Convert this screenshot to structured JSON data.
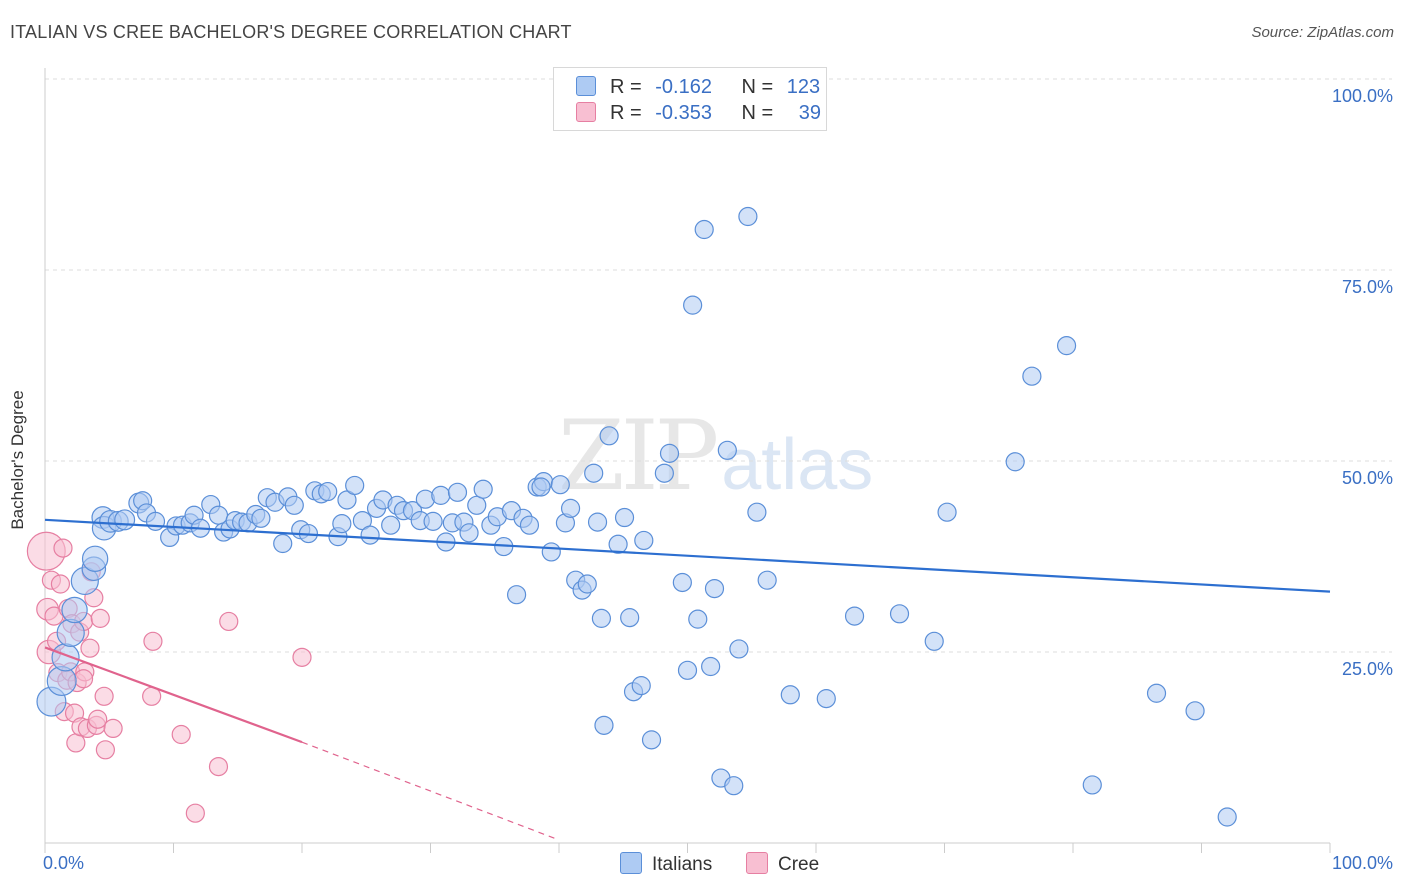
{
  "title": "ITALIAN VS CREE BACHELOR'S DEGREE CORRELATION CHART",
  "source": "Source: ZipAtlas.com",
  "watermark": {
    "zip": "ZIP",
    "atlas": "atlas"
  },
  "colors": {
    "italians_fill": "#aecbf3",
    "italians_stroke": "#5b8fd8",
    "italians_line": "#2d6fd0",
    "cree_fill": "#f8bfd2",
    "cree_stroke": "#e67fa2",
    "cree_line": "#e0638d",
    "tick_text": "#3a6fc4",
    "grid": "#dddddd"
  },
  "legend": {
    "rows": [
      {
        "r_label": "R =",
        "r_value": "-0.162",
        "n_label": "N =",
        "n_value": "123"
      },
      {
        "r_label": "R =",
        "r_value": "-0.353",
        "n_label": "N =",
        "n_value": "39"
      }
    ]
  },
  "bottom_legend": [
    "Italians",
    "Cree"
  ],
  "chart_data": {
    "type": "scatter",
    "xlabel": "",
    "ylabel": "Bachelor's Degree",
    "xlim": [
      0,
      100
    ],
    "ylim": [
      0,
      100
    ],
    "x_tick_labels": [
      "0.0%",
      "100.0%"
    ],
    "y_tick_labels": [
      "100.0%",
      "75.0%",
      "50.0%",
      "25.0%"
    ],
    "y_ticks": [
      100,
      75,
      50,
      25
    ],
    "grid": true,
    "legend_position": "top-center",
    "series": [
      {
        "name": "Italians",
        "trend": {
          "x": [
            0,
            100
          ],
          "y": [
            42.3,
            32.9
          ]
        },
        "points": [
          [
            0.5,
            18.5,
            1.6
          ],
          [
            1.3,
            21.2,
            1.6
          ],
          [
            1.6,
            24.3,
            1.5
          ],
          [
            2.0,
            27.5,
            1.5
          ],
          [
            2.3,
            30.5,
            1.4
          ],
          [
            3.1,
            34.3,
            1.5
          ],
          [
            3.8,
            35.9,
            1.3
          ],
          [
            3.9,
            37.2,
            1.4
          ],
          [
            4.5,
            42.6,
            1.2
          ],
          [
            4.6,
            41.2,
            1.3
          ],
          [
            5.1,
            42.1,
            1.2
          ],
          [
            5.7,
            42.1,
            1.1
          ],
          [
            6.2,
            42.3,
            1.1
          ],
          [
            7.3,
            44.5,
            1.1
          ],
          [
            7.6,
            44.8,
            1.0
          ],
          [
            7.9,
            43.2,
            1.0
          ],
          [
            8.6,
            42.1,
            1.0
          ],
          [
            9.7,
            40.0,
            1.0
          ],
          [
            10.2,
            41.5,
            1.0
          ],
          [
            10.7,
            41.6,
            1.0
          ],
          [
            11.3,
            41.9,
            1.0
          ],
          [
            11.6,
            42.9,
            1.0
          ],
          [
            12.1,
            41.2,
            1.0
          ],
          [
            12.9,
            44.3,
            1.0
          ],
          [
            13.5,
            42.9,
            1.0
          ],
          [
            13.9,
            40.7,
            1.0
          ],
          [
            14.4,
            41.1,
            1.0
          ],
          [
            14.8,
            42.2,
            1.0
          ],
          [
            15.3,
            42.0,
            1.0
          ],
          [
            15.8,
            41.9,
            1.0
          ],
          [
            16.4,
            43.0,
            1.0
          ],
          [
            16.8,
            42.5,
            1.0
          ],
          [
            17.3,
            45.2,
            1.0
          ],
          [
            17.9,
            44.6,
            1.0
          ],
          [
            18.5,
            39.2,
            1.0
          ],
          [
            18.9,
            45.3,
            1.0
          ],
          [
            19.4,
            44.2,
            1.0
          ],
          [
            19.9,
            41.0,
            1.0
          ],
          [
            20.5,
            40.5,
            1.0
          ],
          [
            21.0,
            46.1,
            1.0
          ],
          [
            21.5,
            45.7,
            1.0
          ],
          [
            22.0,
            46.0,
            1.0
          ],
          [
            22.8,
            40.1,
            1.0
          ],
          [
            23.1,
            41.8,
            1.0
          ],
          [
            23.5,
            44.9,
            1.0
          ],
          [
            24.1,
            46.8,
            1.0
          ],
          [
            24.7,
            42.2,
            1.0
          ],
          [
            25.3,
            40.3,
            1.0
          ],
          [
            25.8,
            43.8,
            1.0
          ],
          [
            26.3,
            44.9,
            1.0
          ],
          [
            26.9,
            41.6,
            1.0
          ],
          [
            27.4,
            44.2,
            1.0
          ],
          [
            27.9,
            43.5,
            1.0
          ],
          [
            28.6,
            43.5,
            1.0
          ],
          [
            29.2,
            42.2,
            1.0
          ],
          [
            29.6,
            45.0,
            1.0
          ],
          [
            30.2,
            42.1,
            1.0
          ],
          [
            30.8,
            45.5,
            1.0
          ],
          [
            31.2,
            39.4,
            1.0
          ],
          [
            31.7,
            41.9,
            1.0
          ],
          [
            32.1,
            45.9,
            1.0
          ],
          [
            32.6,
            42.0,
            1.0
          ],
          [
            33.0,
            40.6,
            1.0
          ],
          [
            33.6,
            44.2,
            1.0
          ],
          [
            34.1,
            46.3,
            1.0
          ],
          [
            34.7,
            41.6,
            1.0
          ],
          [
            35.2,
            42.7,
            1.0
          ],
          [
            35.7,
            38.8,
            1.0
          ],
          [
            36.3,
            43.5,
            1.0
          ],
          [
            36.7,
            32.5,
            1.0
          ],
          [
            37.2,
            42.5,
            1.0
          ],
          [
            37.7,
            41.6,
            1.0
          ],
          [
            38.3,
            46.6,
            1.0
          ],
          [
            38.8,
            47.3,
            1.0
          ],
          [
            38.6,
            46.6,
            1.0
          ],
          [
            39.4,
            38.1,
            1.0
          ],
          [
            40.1,
            46.9,
            1.0
          ],
          [
            40.5,
            41.9,
            1.0
          ],
          [
            40.9,
            43.8,
            1.0
          ],
          [
            41.3,
            34.4,
            1.0
          ],
          [
            41.8,
            33.1,
            1.0
          ],
          [
            42.2,
            33.9,
            1.0
          ],
          [
            42.7,
            48.4,
            1.0
          ],
          [
            43.0,
            42.0,
            1.0
          ],
          [
            43.3,
            29.4,
            1.0
          ],
          [
            43.5,
            15.4,
            1.0
          ],
          [
            43.9,
            53.3,
            1.0
          ],
          [
            44.6,
            39.1,
            1.0
          ],
          [
            45.1,
            42.6,
            1.0
          ],
          [
            45.5,
            29.5,
            1.0
          ],
          [
            45.8,
            19.8,
            1.0
          ],
          [
            46.4,
            20.6,
            1.0
          ],
          [
            46.6,
            39.6,
            1.0
          ],
          [
            47.2,
            13.5,
            1.0
          ],
          [
            48.2,
            48.4,
            1.0
          ],
          [
            48.6,
            51.0,
            1.0
          ],
          [
            49.6,
            34.1,
            1.0
          ],
          [
            50.0,
            22.6,
            1.0
          ],
          [
            50.4,
            70.4,
            1.0
          ],
          [
            50.8,
            29.3,
            1.0
          ],
          [
            51.3,
            80.3,
            1.0
          ],
          [
            51.8,
            23.1,
            1.0
          ],
          [
            52.1,
            33.3,
            1.0
          ],
          [
            52.6,
            8.5,
            1.0
          ],
          [
            53.1,
            51.4,
            1.0
          ],
          [
            53.6,
            7.5,
            1.0
          ],
          [
            54.0,
            25.4,
            1.0
          ],
          [
            54.7,
            82.0,
            1.0
          ],
          [
            55.4,
            43.3,
            1.0
          ],
          [
            56.2,
            34.4,
            1.0
          ],
          [
            58.0,
            19.4,
            1.0
          ],
          [
            60.8,
            18.9,
            1.0
          ],
          [
            63.0,
            29.7,
            1.0
          ],
          [
            66.5,
            30.0,
            1.0
          ],
          [
            69.2,
            26.4,
            1.0
          ],
          [
            70.2,
            43.3,
            1.0
          ],
          [
            75.5,
            49.9,
            1.0
          ],
          [
            76.8,
            61.1,
            1.0
          ],
          [
            79.5,
            65.1,
            1.0
          ],
          [
            81.5,
            7.6,
            1.0
          ],
          [
            89.5,
            17.3,
            1.0
          ],
          [
            92.0,
            3.4,
            1.0
          ],
          [
            86.5,
            19.6,
            1.0
          ]
        ]
      },
      {
        "name": "Cree",
        "trend": {
          "x": [
            0,
            20
          ],
          "y": [
            25.6,
            13.2
          ]
        },
        "trend_dashed": {
          "x": [
            20,
            40
          ],
          "y": [
            13.2,
            0.4
          ]
        },
        "points": [
          [
            0.1,
            38.2,
            2.1
          ],
          [
            0.2,
            30.6,
            1.2
          ],
          [
            0.3,
            25.0,
            1.3
          ],
          [
            0.5,
            34.4,
            1.0
          ],
          [
            0.7,
            29.7,
            1.0
          ],
          [
            0.9,
            26.4,
            1.0
          ],
          [
            1.0,
            22.3,
            1.0
          ],
          [
            1.2,
            33.9,
            1.0
          ],
          [
            1.4,
            38.6,
            1.0
          ],
          [
            1.5,
            17.2,
            1.0
          ],
          [
            1.7,
            21.3,
            1.0
          ],
          [
            1.8,
            30.7,
            1.0
          ],
          [
            2.0,
            22.4,
            1.0
          ],
          [
            2.1,
            28.7,
            1.0
          ],
          [
            2.3,
            17.0,
            1.0
          ],
          [
            2.4,
            13.1,
            1.0
          ],
          [
            2.5,
            21.0,
            1.0
          ],
          [
            2.7,
            27.6,
            1.0
          ],
          [
            2.8,
            15.2,
            1.0
          ],
          [
            3.0,
            29.0,
            1.0
          ],
          [
            3.1,
            22.4,
            1.0
          ],
          [
            3.3,
            15.0,
            1.0
          ],
          [
            3.5,
            25.5,
            1.0
          ],
          [
            3.6,
            35.5,
            1.0
          ],
          [
            3.8,
            32.1,
            1.0
          ],
          [
            4.0,
            15.4,
            1.0
          ],
          [
            4.1,
            16.2,
            1.0
          ],
          [
            4.3,
            29.4,
            1.0
          ],
          [
            4.6,
            19.2,
            1.0
          ],
          [
            4.7,
            12.2,
            1.0
          ],
          [
            5.3,
            15.0,
            1.0
          ],
          [
            8.3,
            19.2,
            1.0
          ],
          [
            8.4,
            26.4,
            1.0
          ],
          [
            10.6,
            14.2,
            1.0
          ],
          [
            11.7,
            3.9,
            1.0
          ],
          [
            13.5,
            10.0,
            1.0
          ],
          [
            14.3,
            29.0,
            1.0
          ],
          [
            20.0,
            24.3,
            1.0
          ],
          [
            3.0,
            21.5,
            1.0
          ]
        ]
      }
    ]
  }
}
